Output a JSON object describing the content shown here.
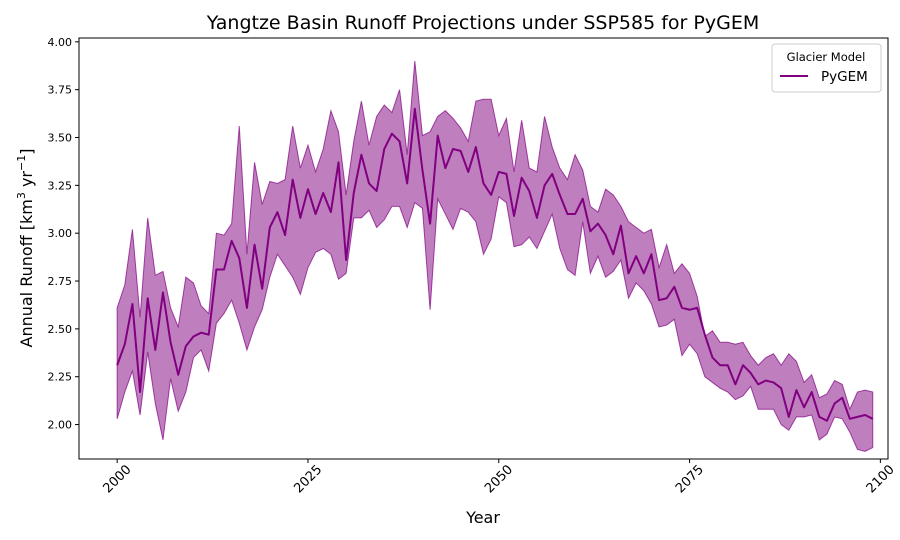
{
  "chart_data": {
    "type": "line",
    "title": "Yangtze Basin Runoff Projections under SSP585 for PyGEM",
    "xlabel": "Year",
    "ylabel_main": "Annual Runoff [km",
    "ylabel_sup1": "3",
    "ylabel_mid": " yr",
    "ylabel_sup2": "−1",
    "ylabel_end": "]",
    "xlim": [
      1995,
      2101
    ],
    "ylim": [
      1.82,
      4.02
    ],
    "x_ticks": [
      2000,
      2025,
      2050,
      2075,
      2100
    ],
    "x_tick_labels": [
      "2000",
      "2025",
      "2050",
      "2075",
      "2100"
    ],
    "y_ticks": [
      2.0,
      2.25,
      2.5,
      2.75,
      3.0,
      3.25,
      3.5,
      3.75,
      4.0
    ],
    "y_tick_labels": [
      "2.00",
      "2.25",
      "2.50",
      "2.75",
      "3.00",
      "3.25",
      "3.50",
      "3.75",
      "4.00"
    ],
    "grid": false,
    "legend": {
      "title": "Glacier Model",
      "placement": "top-right"
    },
    "series": [
      {
        "name": "PyGEM",
        "color": "#800080",
        "band_color": "#800080",
        "band_opacity": 0.5,
        "x": [
          2000,
          2001,
          2002,
          2003,
          2004,
          2005,
          2006,
          2007,
          2008,
          2009,
          2010,
          2011,
          2012,
          2013,
          2014,
          2015,
          2016,
          2017,
          2018,
          2019,
          2020,
          2021,
          2022,
          2023,
          2024,
          2025,
          2026,
          2027,
          2028,
          2029,
          2030,
          2031,
          2032,
          2033,
          2034,
          2035,
          2036,
          2037,
          2038,
          2039,
          2040,
          2041,
          2042,
          2043,
          2044,
          2045,
          2046,
          2047,
          2048,
          2049,
          2050,
          2051,
          2052,
          2053,
          2054,
          2055,
          2056,
          2057,
          2058,
          2059,
          2060,
          2061,
          2062,
          2063,
          2064,
          2065,
          2066,
          2067,
          2068,
          2069,
          2070,
          2071,
          2072,
          2073,
          2074,
          2075,
          2076,
          2077,
          2078,
          2079,
          2080,
          2081,
          2082,
          2083,
          2084,
          2085,
          2086,
          2087,
          2088,
          2089,
          2090,
          2091,
          2092,
          2093,
          2094,
          2095,
          2096,
          2097,
          2098,
          2099
        ],
        "mean": [
          2.31,
          2.42,
          2.63,
          2.17,
          2.66,
          2.39,
          2.69,
          2.43,
          2.26,
          2.41,
          2.46,
          2.48,
          2.47,
          2.81,
          2.81,
          2.96,
          2.87,
          2.61,
          2.94,
          2.71,
          3.03,
          3.11,
          2.99,
          3.28,
          3.08,
          3.23,
          3.1,
          3.21,
          3.11,
          3.37,
          2.86,
          3.21,
          3.41,
          3.26,
          3.22,
          3.44,
          3.52,
          3.48,
          3.26,
          3.65,
          3.33,
          3.05,
          3.51,
          3.34,
          3.44,
          3.43,
          3.32,
          3.45,
          3.26,
          3.2,
          3.32,
          3.31,
          3.09,
          3.29,
          3.22,
          3.08,
          3.25,
          3.31,
          3.2,
          3.1,
          3.1,
          3.18,
          3.01,
          3.05,
          2.99,
          2.89,
          3.04,
          2.79,
          2.88,
          2.79,
          2.89,
          2.65,
          2.66,
          2.72,
          2.61,
          2.6,
          2.61,
          2.47,
          2.35,
          2.31,
          2.31,
          2.21,
          2.31,
          2.27,
          2.21,
          2.23,
          2.22,
          2.19,
          2.04,
          2.18,
          2.09,
          2.17,
          2.04,
          2.02,
          2.11,
          2.14,
          2.03,
          2.04,
          2.05,
          2.03
        ],
        "upper": [
          2.61,
          2.73,
          3.02,
          2.56,
          3.08,
          2.78,
          2.8,
          2.61,
          2.51,
          2.77,
          2.74,
          2.62,
          2.58,
          3.0,
          2.99,
          3.05,
          3.56,
          2.89,
          3.37,
          3.15,
          3.27,
          3.26,
          3.28,
          3.56,
          3.34,
          3.46,
          3.32,
          3.44,
          3.64,
          3.53,
          3.2,
          3.48,
          3.69,
          3.46,
          3.61,
          3.67,
          3.63,
          3.75,
          3.41,
          3.9,
          3.51,
          3.53,
          3.61,
          3.64,
          3.6,
          3.55,
          3.48,
          3.69,
          3.7,
          3.7,
          3.51,
          3.6,
          3.32,
          3.59,
          3.34,
          3.32,
          3.61,
          3.45,
          3.34,
          3.28,
          3.41,
          3.33,
          3.14,
          3.11,
          3.23,
          3.2,
          3.14,
          3.06,
          3.03,
          3.0,
          3.02,
          2.82,
          2.94,
          2.79,
          2.84,
          2.79,
          2.67,
          2.46,
          2.49,
          2.43,
          2.43,
          2.42,
          2.43,
          2.36,
          2.31,
          2.35,
          2.37,
          2.31,
          2.37,
          2.33,
          2.22,
          2.26,
          2.14,
          2.16,
          2.23,
          2.21,
          2.08,
          2.17,
          2.18,
          2.17
        ],
        "lower": [
          2.03,
          2.17,
          2.28,
          2.05,
          2.38,
          2.11,
          1.92,
          2.24,
          2.07,
          2.17,
          2.35,
          2.39,
          2.28,
          2.53,
          2.58,
          2.65,
          2.53,
          2.39,
          2.51,
          2.6,
          2.77,
          2.89,
          2.83,
          2.77,
          2.68,
          2.82,
          2.9,
          2.92,
          2.89,
          2.76,
          2.79,
          3.08,
          3.08,
          3.12,
          3.03,
          3.07,
          3.14,
          3.14,
          3.03,
          3.16,
          3.13,
          2.6,
          3.18,
          3.1,
          3.02,
          3.13,
          3.11,
          3.06,
          2.89,
          2.97,
          3.19,
          3.16,
          2.93,
          2.94,
          2.98,
          2.92,
          3.01,
          3.1,
          2.92,
          2.81,
          2.78,
          3.06,
          2.79,
          2.88,
          2.77,
          2.8,
          2.86,
          2.66,
          2.74,
          2.7,
          2.63,
          2.51,
          2.52,
          2.55,
          2.36,
          2.42,
          2.37,
          2.25,
          2.22,
          2.19,
          2.17,
          2.13,
          2.15,
          2.2,
          2.08,
          2.08,
          2.08,
          2.0,
          1.97,
          2.04,
          2.04,
          2.05,
          1.92,
          1.95,
          2.04,
          2.03,
          1.96,
          1.87,
          1.86,
          1.88
        ]
      }
    ]
  }
}
